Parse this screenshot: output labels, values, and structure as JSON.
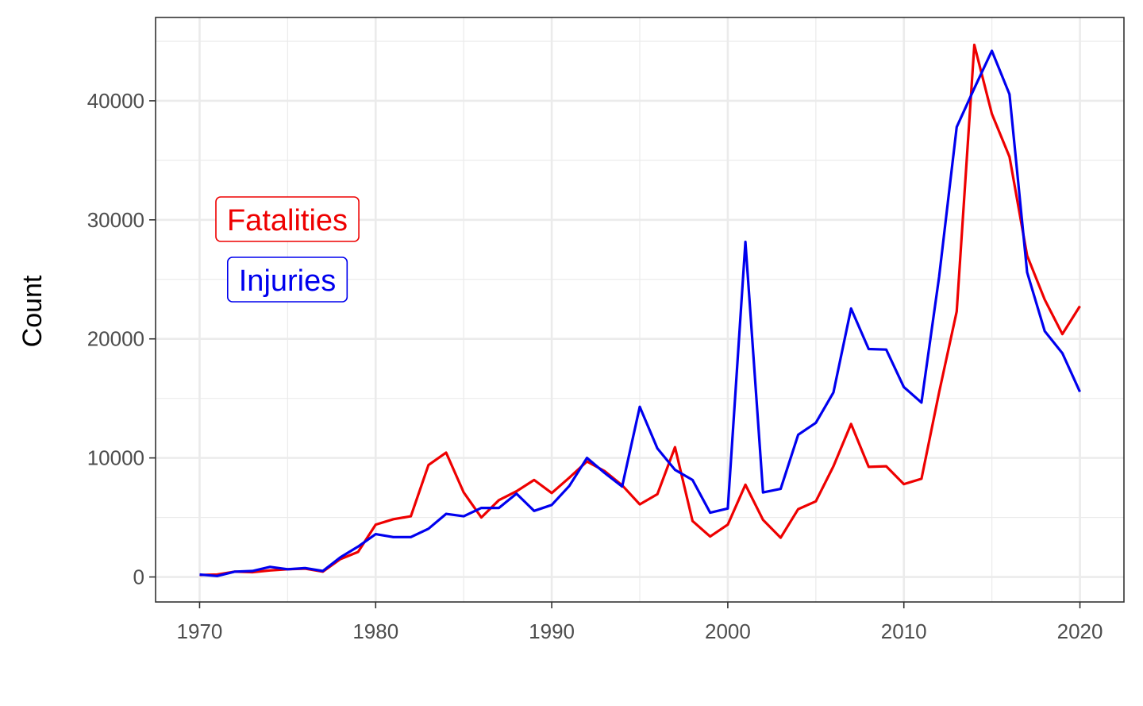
{
  "chart_data": {
    "type": "line",
    "title": "",
    "xlabel": "",
    "ylabel": "Count",
    "xlim": [
      1967.5,
      2022.5
    ],
    "ylim": [
      -2100,
      47000
    ],
    "x_ticks": [
      1970,
      1980,
      1990,
      2000,
      2010,
      2020
    ],
    "y_ticks": [
      0,
      10000,
      20000,
      30000,
      40000
    ],
    "grid": true,
    "legend_placement": "left",
    "x": [
      1970,
      1971,
      1972,
      1973,
      1974,
      1975,
      1976,
      1977,
      1978,
      1979,
      1980,
      1981,
      1982,
      1983,
      1984,
      1985,
      1986,
      1987,
      1988,
      1989,
      1990,
      1991,
      1992,
      1993,
      1994,
      1995,
      1996,
      1997,
      1998,
      1999,
      2000,
      2001,
      2002,
      2003,
      2004,
      2005,
      2006,
      2007,
      2008,
      2009,
      2010,
      2011,
      2012,
      2013,
      2014,
      2015,
      2016,
      2017,
      2018,
      2019,
      2020
    ],
    "series": [
      {
        "name": "Fatalities",
        "color": "#ee0000",
        "values": [
          170,
          200,
          450,
          400,
          550,
          650,
          700,
          450,
          1500,
          2100,
          4400,
          4850,
          5100,
          9400,
          10450,
          7100,
          5000,
          6450,
          7200,
          8150,
          7050,
          8350,
          9700,
          8900,
          7700,
          6100,
          6950,
          10900,
          4700,
          3400,
          4400,
          7750,
          4800,
          3300,
          5700,
          6350,
          9300,
          12850,
          9250,
          9300,
          7800,
          8250,
          15500,
          22300,
          44700,
          38900,
          35300,
          27000,
          23300,
          20400,
          22750
        ]
      },
      {
        "name": "Injuries",
        "color": "#0000ee",
        "values": [
          200,
          80,
          450,
          500,
          850,
          650,
          750,
          500,
          1650,
          2550,
          3600,
          3350,
          3350,
          4050,
          5300,
          5100,
          5800,
          5800,
          7000,
          5550,
          6050,
          7650,
          10000,
          8750,
          7600,
          14300,
          10800,
          9000,
          8150,
          5400,
          5750,
          28150,
          7100,
          7400,
          11950,
          12950,
          15500,
          22550,
          19150,
          19100,
          15950,
          14650,
          25200,
          37800,
          41050,
          44200,
          40550,
          25600,
          20650,
          18800,
          15550
        ]
      }
    ]
  }
}
